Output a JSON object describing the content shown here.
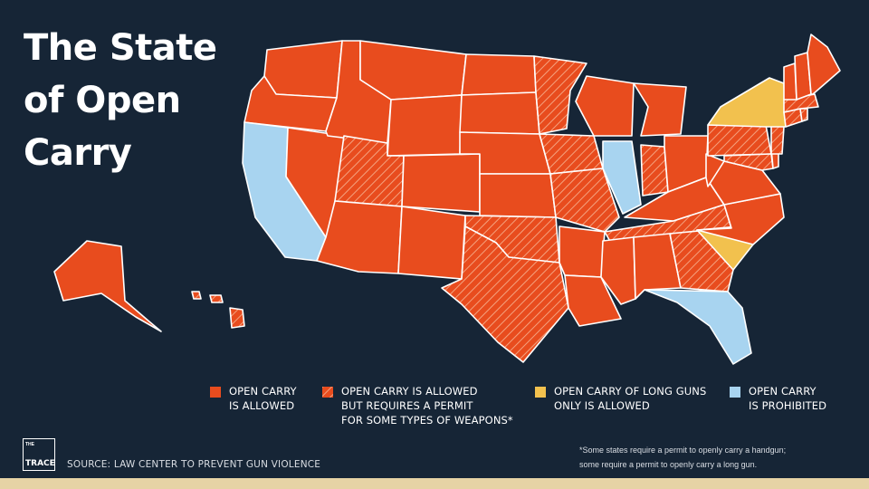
{
  "title_lines": [
    "The State",
    "of Open",
    "Carry"
  ],
  "colors": {
    "background": "#162536",
    "allowed": "#e84c1e",
    "permit_hatch": "#f08a66",
    "long_guns_only": "#f2c14e",
    "prohibited": "#a8d4f0",
    "border": "#ffffff"
  },
  "categories": {
    "allowed": [
      "WA",
      "OR",
      "NV",
      "ID",
      "MT",
      "WY",
      "AZ",
      "NM",
      "CO",
      "ND",
      "SD",
      "NE",
      "KS",
      "WI",
      "MI",
      "OH",
      "KY",
      "WV",
      "VA",
      "NC",
      "AR",
      "LA",
      "MS",
      "AL",
      "NH",
      "VT",
      "ME",
      "DE",
      "AK"
    ],
    "permit_required": [
      "UT",
      "MN",
      "IA",
      "MO",
      "OK",
      "TX",
      "TN",
      "GA",
      "IN",
      "PA",
      "MD",
      "NJ",
      "MA",
      "CT",
      "RI",
      "HI"
    ],
    "long_guns_only": [
      "NY",
      "SC"
    ],
    "prohibited": [
      "CA",
      "IL",
      "FL"
    ]
  },
  "legend": [
    {
      "key": "allowed",
      "label": "OPEN CARRY\nIS ALLOWED"
    },
    {
      "key": "permit",
      "label": "OPEN CARRY IS ALLOWED\nBUT REQUIRES A PERMIT\nFOR SOME TYPES OF WEAPONS*"
    },
    {
      "key": "long_guns",
      "label": "OPEN CARRY OF LONG GUNS\nONLY IS ALLOWED"
    },
    {
      "key": "prohibited",
      "label": "OPEN CARRY\nIS PROHIBITED"
    }
  ],
  "logo": {
    "small": "THE",
    "word": "TRACE"
  },
  "source": "SOURCE: LAW CENTER TO PREVENT GUN VIOLENCE",
  "footnote": "*Some states require a permit to openly carry a handgun;\nsome require a permit to openly carry a long gun."
}
